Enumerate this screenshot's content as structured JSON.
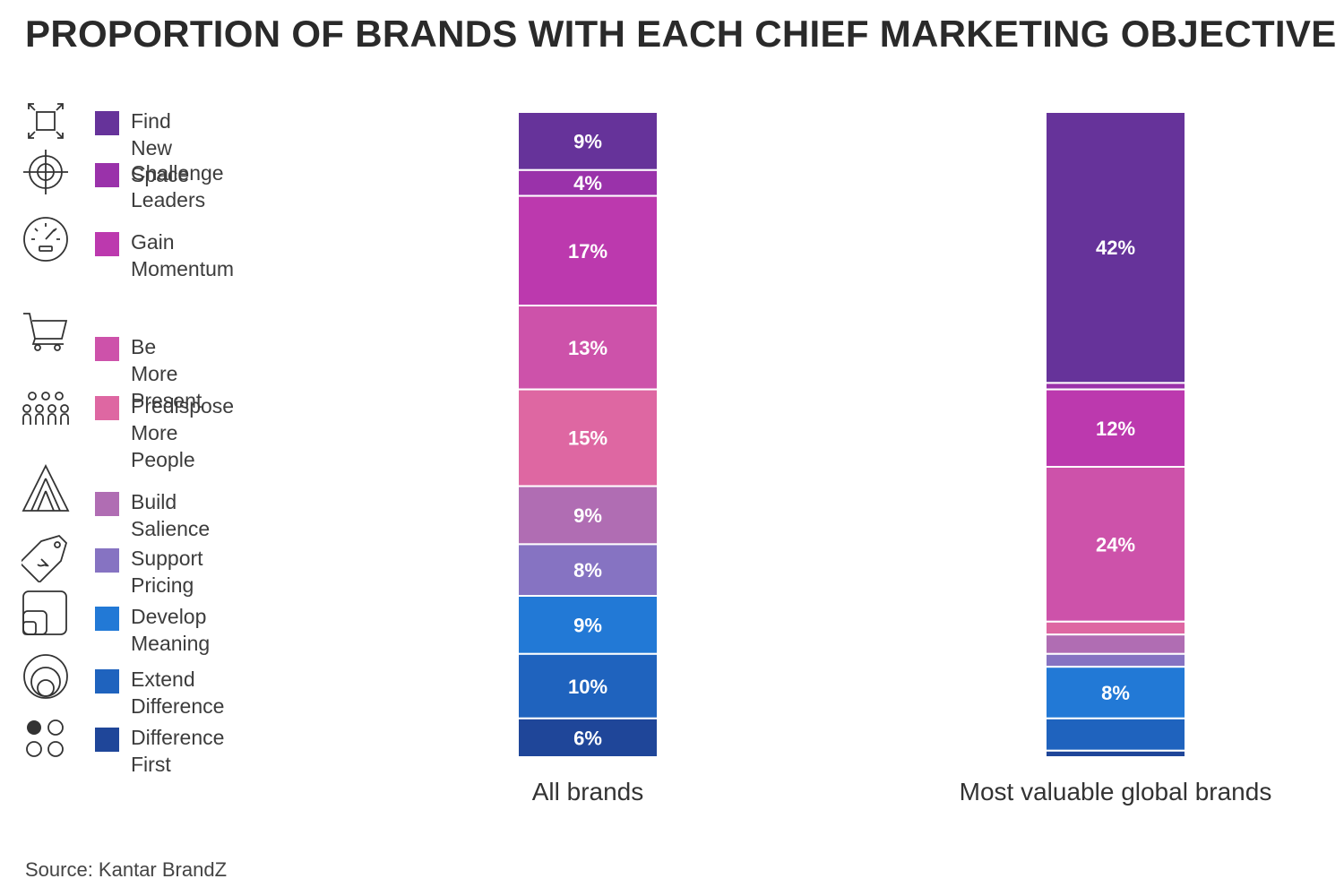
{
  "title": "PROPORTION OF BRANDS WITH EACH CHIEF MARKETING OBJECTIVE",
  "source": "Source: Kantar BrandZ",
  "legend": [
    {
      "label": "Find New Space",
      "color": "#66339a",
      "icon": "expand-icon"
    },
    {
      "label": "Challenge Leaders",
      "color": "#9a32aa",
      "icon": "target-icon"
    },
    {
      "label": "Gain Momentum",
      "color": "#bc39ae",
      "icon": "speedometer-icon"
    },
    {
      "label": "Be More Present",
      "color": "#cd52aa",
      "icon": "cart-icon"
    },
    {
      "label": "Predispose\nMore People",
      "color": "#de67a2",
      "icon": "people-icon"
    },
    {
      "label": "Build Salience",
      "color": "#b06db3",
      "icon": "pyramid-icon"
    },
    {
      "label": "Support Pricing",
      "color": "#8673c2",
      "icon": "price-tag-icon"
    },
    {
      "label": "Develop Meaning",
      "color": "#2279d6",
      "icon": "frames-icon"
    },
    {
      "label": "Extend Difference",
      "color": "#1f63be",
      "icon": "concentric-circles-icon"
    },
    {
      "label": "Difference First",
      "color": "#1f4699",
      "icon": "dots-icon"
    }
  ],
  "chart_data": {
    "type": "bar",
    "stacked": true,
    "title": "PROPORTION OF BRANDS WITH EACH CHIEF MARKETING OBJECTIVE",
    "categories": [
      "All brands",
      "Most valuable global brands"
    ],
    "ylim": [
      0,
      100
    ],
    "series": [
      {
        "name": "Find New Space",
        "values": [
          9,
          42
        ],
        "labels": [
          "9%",
          "42%"
        ]
      },
      {
        "name": "Challenge Leaders",
        "values": [
          4,
          1
        ],
        "labels": [
          "4%",
          ""
        ]
      },
      {
        "name": "Gain Momentum",
        "values": [
          17,
          12
        ],
        "labels": [
          "17%",
          "12%"
        ]
      },
      {
        "name": "Be More Present",
        "values": [
          13,
          24
        ],
        "labels": [
          "13%",
          "24%"
        ]
      },
      {
        "name": "Predispose More People",
        "values": [
          15,
          2
        ],
        "labels": [
          "15%",
          ""
        ]
      },
      {
        "name": "Build Salience",
        "values": [
          9,
          3
        ],
        "labels": [
          "9%",
          ""
        ]
      },
      {
        "name": "Support Pricing",
        "values": [
          8,
          2
        ],
        "labels": [
          "8%",
          ""
        ]
      },
      {
        "name": "Develop Meaning",
        "values": [
          9,
          8
        ],
        "labels": [
          "9%",
          "8%"
        ]
      },
      {
        "name": "Extend Difference",
        "values": [
          10,
          5
        ],
        "labels": [
          "10%",
          ""
        ]
      },
      {
        "name": "Difference First",
        "values": [
          6,
          1
        ],
        "labels": [
          "6%",
          ""
        ]
      }
    ]
  }
}
